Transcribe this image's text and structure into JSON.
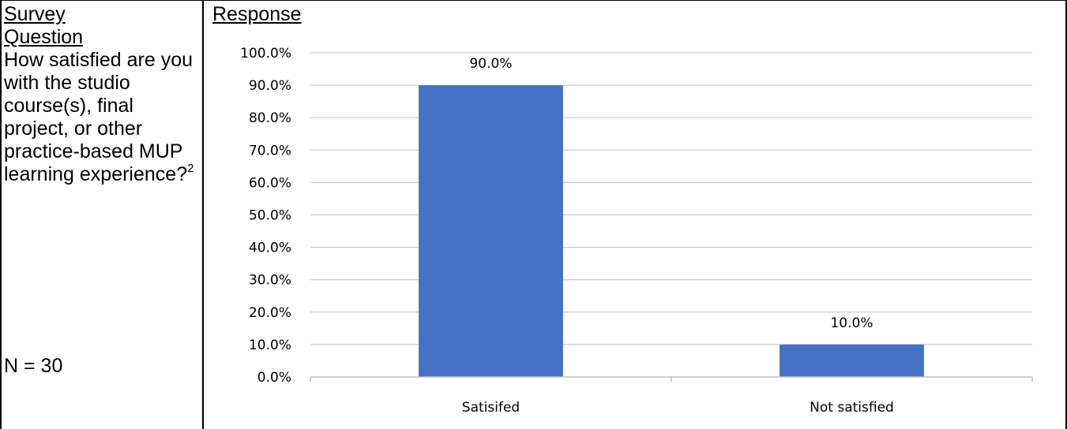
{
  "table": {
    "col1_header_line1": "Survey",
    "col1_header_line2": "Question",
    "col2_header": "Response",
    "question": "How satisfied are you with the studio course(s), final project, or other practice-based MUP learning experience?",
    "footnote_marker": "2",
    "sample_size": "N = 30"
  },
  "chart_data": {
    "type": "bar",
    "categories": [
      "Satisifed",
      "Not satisfied"
    ],
    "values": [
      90.0,
      10.0
    ],
    "data_labels": [
      "90.0%",
      "10.0%"
    ],
    "title": "",
    "xlabel": "",
    "ylabel": "",
    "ylim": [
      0,
      100
    ],
    "y_ticks": [
      "0.0%",
      "10.0%",
      "20.0%",
      "30.0%",
      "40.0%",
      "50.0%",
      "60.0%",
      "70.0%",
      "80.0%",
      "90.0%",
      "100.0%"
    ],
    "grid": true,
    "legend": "none",
    "bar_color": "#4472C4",
    "gridline_color": "#BFBFBF",
    "axis_color": "#BFBFBF"
  }
}
